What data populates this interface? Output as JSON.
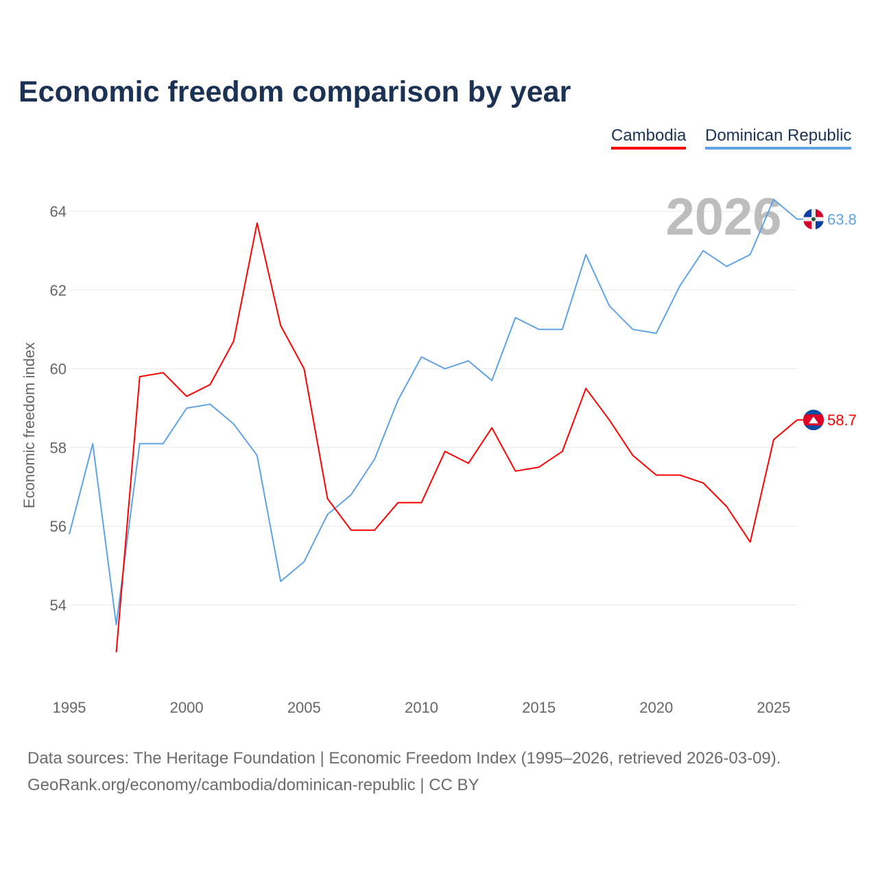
{
  "title": "Economic freedom comparison by year",
  "legend": [
    "Cambodia",
    "Dominican Republic"
  ],
  "footer": {
    "line1": "Data sources: The Heritage Foundation | Economic Freedom Index (1995–2026, retrieved 2026-03-09).",
    "line2": "GeoRank.org/economy/cambodia/dominican-republic | CC BY"
  },
  "chart_data": {
    "type": "line",
    "title": "Economic freedom comparison by year",
    "xlabel": "",
    "ylabel": "Economic freedom index",
    "xlim": [
      1995,
      2026
    ],
    "ylim": [
      52,
      65
    ],
    "x_ticks": [
      1995,
      2000,
      2005,
      2010,
      2015,
      2020,
      2025
    ],
    "y_ticks": [
      54,
      56,
      58,
      60,
      62,
      64
    ],
    "grid": true,
    "legend_position": "top-right",
    "watermark_year": "2026",
    "x": [
      1995,
      1996,
      1997,
      1998,
      1999,
      2000,
      2001,
      2002,
      2003,
      2004,
      2005,
      2006,
      2007,
      2008,
      2009,
      2010,
      2011,
      2012,
      2013,
      2014,
      2015,
      2016,
      2017,
      2018,
      2019,
      2020,
      2021,
      2022,
      2023,
      2024,
      2025,
      2026
    ],
    "series": [
      {
        "name": "Cambodia",
        "color": "#ff0000",
        "end_label": "58.7",
        "values": [
          null,
          null,
          52.8,
          59.8,
          59.9,
          59.3,
          59.6,
          60.7,
          63.7,
          61.1,
          60.0,
          56.7,
          55.9,
          55.9,
          56.6,
          56.6,
          57.9,
          57.6,
          58.5,
          57.4,
          57.5,
          57.9,
          59.5,
          58.7,
          57.8,
          57.3,
          57.3,
          57.1,
          56.5,
          55.6,
          58.2,
          58.7
        ]
      },
      {
        "name": "Dominican Republic",
        "color": "#5fa2e6",
        "end_label": "63.8",
        "values": [
          55.8,
          58.1,
          53.5,
          58.1,
          58.1,
          59.0,
          59.1,
          58.6,
          57.8,
          54.6,
          55.1,
          56.3,
          56.8,
          57.7,
          59.2,
          60.3,
          60.0,
          60.2,
          59.7,
          61.3,
          61.0,
          61.0,
          62.9,
          61.6,
          61.0,
          60.9,
          62.1,
          63.0,
          62.6,
          62.9,
          64.3,
          63.8
        ]
      }
    ]
  }
}
